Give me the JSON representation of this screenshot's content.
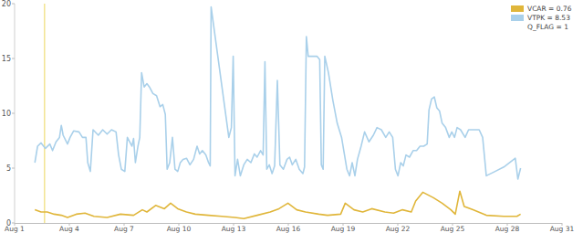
{
  "chart_data": {
    "type": "line",
    "legend": "top-right",
    "grid": false,
    "annotations": [
      "Q_FLAG = 1"
    ],
    "cursor": {
      "x": 2.64,
      "color": "#f2e492"
    },
    "xlim": [
      1,
      31
    ],
    "xticks": [
      {
        "value": 1,
        "label": "Aug 1"
      },
      {
        "value": 4,
        "label": "Aug 4"
      },
      {
        "value": 7,
        "label": "Aug 7"
      },
      {
        "value": 10,
        "label": "Aug 10"
      },
      {
        "value": 13,
        "label": "Aug 13"
      },
      {
        "value": 16,
        "label": "Aug 16"
      },
      {
        "value": 19,
        "label": "Aug 19"
      },
      {
        "value": 22,
        "label": "Aug 22"
      },
      {
        "value": 25,
        "label": "Aug 25"
      },
      {
        "value": 28,
        "label": "Aug 28"
      },
      {
        "value": 31,
        "label": "Aug 31"
      }
    ],
    "ylim": [
      0,
      20
    ],
    "yticks": [
      0,
      5,
      10,
      15,
      20
    ],
    "series": [
      {
        "name": "VCAR = 0.76",
        "color": "#e0b63a",
        "x": [
          2.11,
          2.45,
          2.79,
          3.17,
          3.56,
          3.9,
          4.38,
          4.86,
          5.35,
          6.07,
          6.8,
          7.52,
          8.0,
          8.25,
          8.73,
          9.21,
          9.55,
          9.94,
          10.42,
          10.9,
          11.63,
          12.35,
          13.08,
          13.56,
          14.29,
          15.01,
          15.49,
          15.98,
          16.46,
          16.94,
          17.67,
          18.15,
          18.87,
          19.12,
          19.6,
          20.08,
          20.57,
          21.29,
          21.77,
          22.26,
          22.74,
          22.98,
          23.37,
          23.95,
          24.43,
          24.91,
          25.15,
          25.4,
          25.64,
          26.12,
          26.85,
          27.81,
          28.53,
          28.73
        ],
        "values": [
          1.2,
          1.0,
          1.0,
          0.8,
          0.7,
          0.5,
          0.8,
          0.9,
          0.6,
          0.5,
          0.8,
          0.7,
          1.2,
          1.0,
          1.6,
          1.3,
          1.8,
          1.3,
          1.0,
          0.8,
          0.7,
          0.6,
          0.5,
          0.4,
          0.7,
          1.0,
          1.3,
          1.8,
          1.2,
          1.0,
          0.8,
          0.7,
          0.8,
          1.8,
          1.2,
          1.0,
          1.3,
          1.0,
          0.9,
          1.2,
          1.0,
          2.0,
          2.8,
          2.3,
          1.8,
          1.2,
          0.8,
          2.9,
          1.5,
          1.2,
          0.7,
          0.6,
          0.6,
          0.8
        ]
      },
      {
        "name": "VTPK = 8.53",
        "color": "#a9d0ea",
        "x": [
          2.11,
          2.26,
          2.45,
          2.69,
          2.93,
          3.08,
          3.27,
          3.46,
          3.56,
          3.66,
          3.9,
          4.04,
          4.24,
          4.53,
          4.72,
          4.91,
          5.01,
          5.15,
          5.3,
          5.59,
          5.83,
          6.07,
          6.31,
          6.56,
          6.7,
          6.85,
          7.04,
          7.18,
          7.43,
          7.52,
          7.62,
          7.76,
          7.86,
          7.96,
          8.1,
          8.25,
          8.39,
          8.58,
          8.78,
          8.97,
          9.12,
          9.26,
          9.36,
          9.5,
          9.65,
          9.79,
          9.94,
          10.08,
          10.23,
          10.42,
          10.61,
          10.81,
          11.0,
          11.14,
          11.29,
          11.48,
          11.63,
          11.72,
          11.77,
          12.74,
          12.88,
          12.98,
          13.08,
          13.22,
          13.37,
          13.56,
          13.75,
          13.95,
          14.14,
          14.29,
          14.48,
          14.62,
          14.72,
          14.82,
          14.96,
          15.11,
          15.25,
          15.4,
          15.54,
          15.73,
          15.93,
          16.07,
          16.22,
          16.41,
          16.6,
          16.8,
          16.89,
          16.99,
          17.09,
          17.33,
          17.57,
          17.72,
          17.81,
          17.91,
          18.0,
          18.2,
          18.44,
          18.68,
          18.92,
          19.07,
          19.21,
          19.36,
          19.5,
          19.65,
          19.79,
          19.99,
          20.18,
          20.42,
          20.66,
          20.86,
          21.1,
          21.34,
          21.53,
          21.72,
          21.87,
          22.01,
          22.16,
          22.3,
          22.45,
          22.64,
          22.84,
          23.03,
          23.22,
          23.42,
          23.61,
          23.71,
          23.85,
          24.0,
          24.14,
          24.29,
          24.43,
          24.62,
          24.82,
          24.96,
          25.11,
          25.25,
          25.44,
          25.69,
          25.88,
          26.17,
          26.46,
          26.65,
          26.85,
          27.33,
          27.81,
          28.44,
          28.58,
          28.73
        ],
        "values": [
          5.5,
          7.0,
          7.3,
          6.8,
          7.2,
          6.6,
          7.4,
          7.8,
          8.9,
          8.0,
          7.2,
          7.8,
          8.4,
          8.3,
          7.8,
          7.8,
          5.5,
          4.7,
          8.5,
          8.0,
          8.5,
          8.1,
          8.5,
          8.3,
          6.2,
          4.9,
          4.7,
          7.8,
          7.0,
          7.7,
          5.5,
          7.0,
          7.8,
          13.7,
          12.4,
          12.7,
          12.4,
          11.8,
          11.6,
          10.6,
          10.8,
          9.9,
          4.9,
          5.5,
          7.8,
          4.9,
          4.7,
          5.5,
          5.8,
          5.9,
          5.3,
          5.8,
          7.0,
          6.3,
          6.6,
          6.2,
          5.5,
          5.2,
          19.7,
          7.8,
          8.7,
          15.2,
          4.3,
          5.8,
          4.3,
          5.3,
          5.8,
          5.5,
          6.3,
          6.0,
          6.6,
          6.2,
          14.7,
          4.9,
          5.3,
          4.5,
          5.2,
          13.0,
          5.3,
          4.9,
          5.8,
          6.0,
          5.3,
          5.8,
          4.9,
          4.5,
          5.1,
          17.0,
          15.2,
          15.2,
          15.2,
          14.9,
          5.3,
          4.9,
          15.2,
          13.7,
          11.2,
          9.1,
          7.8,
          6.3,
          4.9,
          4.3,
          5.5,
          4.3,
          5.8,
          7.0,
          8.3,
          7.4,
          8.0,
          8.7,
          8.5,
          7.8,
          8.3,
          7.8,
          4.9,
          4.3,
          5.5,
          5.2,
          6.2,
          6.0,
          6.6,
          6.6,
          7.0,
          7.0,
          7.2,
          10.3,
          11.3,
          11.5,
          10.5,
          10.2,
          9.1,
          8.7,
          7.8,
          8.3,
          7.8,
          8.7,
          8.5,
          7.8,
          8.5,
          8.5,
          8.5,
          7.8,
          4.3,
          4.7,
          5.1,
          5.9,
          4.0,
          5.0
        ]
      }
    ]
  }
}
